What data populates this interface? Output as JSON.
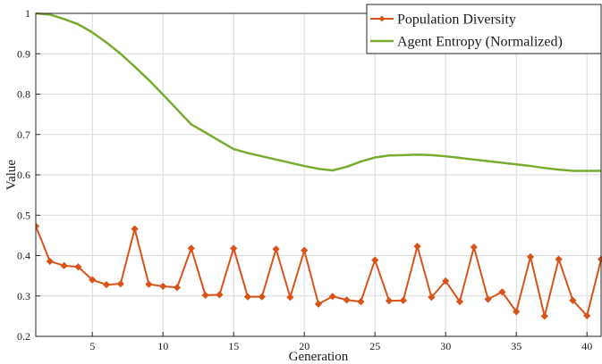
{
  "chart_data": {
    "type": "line",
    "xlabel": "Generation",
    "ylabel": "Value",
    "xlim": [
      1,
      41
    ],
    "ylim": [
      0.2,
      1.0
    ],
    "xticks": [
      5,
      10,
      15,
      20,
      25,
      30,
      35,
      40
    ],
    "xtick_labels": [
      "5",
      "10",
      "15",
      "20",
      "25",
      "30",
      "35",
      "40"
    ],
    "yticks": [
      0.2,
      0.3,
      0.4,
      0.5,
      0.6,
      0.7,
      0.8,
      0.9,
      1.0
    ],
    "ytick_labels": [
      "0.2",
      "0.3",
      "0.4",
      "0.5",
      "0.6",
      "0.7",
      "0.8",
      "0.9",
      "1"
    ],
    "grid": true,
    "legend_position": "top-right",
    "series": [
      {
        "name": "Population Diversity",
        "color": "#d95319",
        "marker": "diamond",
        "x": [
          1,
          2,
          3,
          4,
          5,
          6,
          7,
          8,
          9,
          10,
          11,
          12,
          13,
          14,
          15,
          16,
          17,
          18,
          19,
          20,
          21,
          22,
          23,
          24,
          25,
          26,
          27,
          28,
          29,
          30,
          31,
          32,
          33,
          34,
          35,
          36,
          37,
          38,
          39,
          40,
          41
        ],
        "values": [
          0.473,
          0.386,
          0.375,
          0.372,
          0.34,
          0.328,
          0.33,
          0.466,
          0.329,
          0.324,
          0.321,
          0.418,
          0.302,
          0.303,
          0.418,
          0.298,
          0.298,
          0.416,
          0.297,
          0.413,
          0.28,
          0.299,
          0.29,
          0.286,
          0.389,
          0.288,
          0.289,
          0.423,
          0.297,
          0.337,
          0.286,
          0.421,
          0.292,
          0.31,
          0.261,
          0.397,
          0.25,
          0.391,
          0.289,
          0.251,
          0.391
        ]
      },
      {
        "name": "Agent Entropy (Normalized)",
        "color": "#77ac30",
        "marker": "none",
        "x": [
          1,
          2,
          3,
          4,
          5,
          6,
          7,
          8,
          9,
          10,
          11,
          12,
          13,
          14,
          15,
          16,
          17,
          18,
          19,
          20,
          21,
          22,
          23,
          24,
          25,
          26,
          27,
          28,
          29,
          30,
          31,
          32,
          33,
          34,
          35,
          36,
          37,
          38,
          39,
          40,
          41
        ],
        "values": [
          1.0,
          0.997,
          0.986,
          0.973,
          0.953,
          0.928,
          0.9,
          0.868,
          0.835,
          0.799,
          0.762,
          0.725,
          0.705,
          0.684,
          0.664,
          0.654,
          0.646,
          0.638,
          0.63,
          0.622,
          0.615,
          0.611,
          0.62,
          0.633,
          0.643,
          0.648,
          0.649,
          0.65,
          0.649,
          0.646,
          0.642,
          0.638,
          0.634,
          0.63,
          0.626,
          0.622,
          0.617,
          0.613,
          0.61,
          0.61,
          0.61
        ]
      }
    ]
  }
}
